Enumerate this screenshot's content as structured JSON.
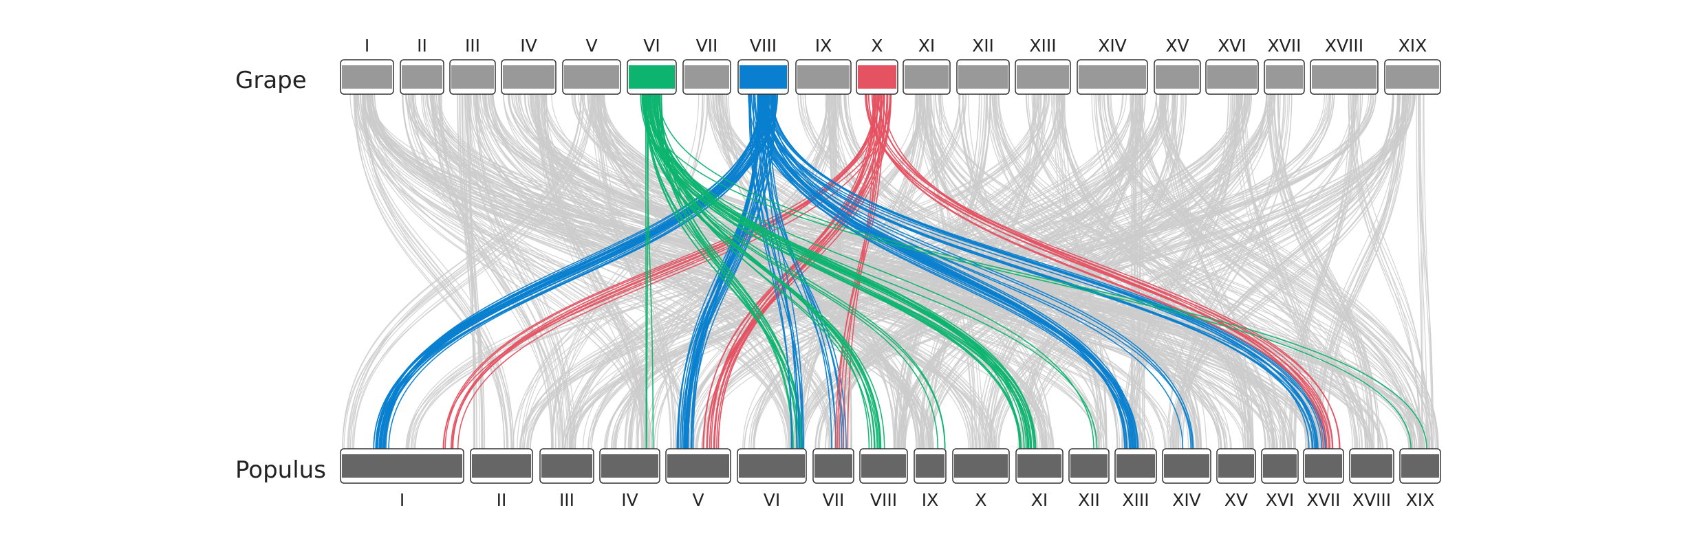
{
  "genomes": {
    "top": {
      "label": "Grape",
      "chromosomes": [
        "I",
        "II",
        "III",
        "IV",
        "V",
        "VI",
        "VII",
        "VIII",
        "IX",
        "X",
        "XI",
        "XII",
        "XIII",
        "XIV",
        "XV",
        "XVI",
        "XVII",
        "XVIII",
        "XIX"
      ]
    },
    "bottom": {
      "label": "Populus",
      "chromosomes": [
        "I",
        "II",
        "III",
        "IV",
        "V",
        "VI",
        "VII",
        "VIII",
        "IX",
        "X",
        "XI",
        "XII",
        "XIII",
        "XIV",
        "XV",
        "XVI",
        "XVII",
        "XVIII",
        "XIX"
      ]
    }
  },
  "colors": {
    "top_chrom_default": "#999999",
    "bottom_chrom": "#666666",
    "background_links": "#cccccc",
    "VI": "#0db46f",
    "VIII": "#0a7fcf",
    "X": "#e55262"
  },
  "highlighted_top_chromosomes": [
    "VI",
    "VIII",
    "X"
  ],
  "highlighted_links": [
    {
      "from": "VIII",
      "to": "I",
      "color_key": "VIII",
      "n": 28
    },
    {
      "from": "X",
      "to": "I",
      "color_key": "X",
      "n": 8
    },
    {
      "from": "VIII",
      "to": "V",
      "color_key": "VIII",
      "n": 22
    },
    {
      "from": "X",
      "to": "V",
      "color_key": "X",
      "n": 14
    },
    {
      "from": "VI",
      "to": "IV",
      "color_key": "VI",
      "n": 3
    },
    {
      "from": "VI",
      "to": "VI",
      "color_key": "VI",
      "n": 10
    },
    {
      "from": "VIII",
      "to": "VI",
      "color_key": "VIII",
      "n": 8
    },
    {
      "from": "VIII",
      "to": "VII",
      "color_key": "VIII",
      "n": 6
    },
    {
      "from": "X",
      "to": "VII",
      "color_key": "X",
      "n": 5
    },
    {
      "from": "VI",
      "to": "VIII",
      "color_key": "VI",
      "n": 10
    },
    {
      "from": "VI",
      "to": "IX",
      "color_key": "VI",
      "n": 3
    },
    {
      "from": "VI",
      "to": "XI",
      "color_key": "VI",
      "n": 18
    },
    {
      "from": "VI",
      "to": "XII",
      "color_key": "VI",
      "n": 2
    },
    {
      "from": "VIII",
      "to": "XIII",
      "color_key": "VIII",
      "n": 18
    },
    {
      "from": "VIII",
      "to": "XIV",
      "color_key": "VIII",
      "n": 4
    },
    {
      "from": "VIII",
      "to": "XVII",
      "color_key": "VIII",
      "n": 12
    },
    {
      "from": "X",
      "to": "XVII",
      "color_key": "X",
      "n": 10
    },
    {
      "from": "VI",
      "to": "XIX",
      "color_key": "VI",
      "n": 2
    }
  ]
}
